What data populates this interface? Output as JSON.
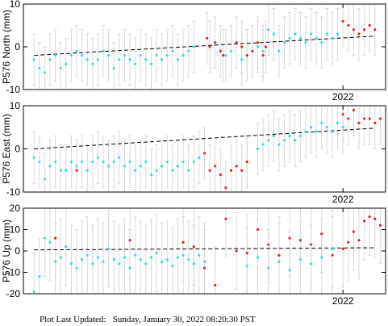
{
  "footer": {
    "label": "Plot Last Updated:",
    "timestamp": "Sunday, January 30, 2022 08:20:30 PST"
  },
  "colors": {
    "cyan_points": "#33ddee",
    "red_points": "#ee2222",
    "error_bars": "#d8d8d8",
    "trend": "#000000"
  },
  "chart_data": [
    {
      "type": "scatter",
      "ylabel": "P576 North (mm)",
      "ylim": [
        -10,
        10
      ],
      "yticks": [
        -10,
        0,
        10
      ],
      "xlim": [
        2021.4,
        2022.08
      ],
      "xticks": [
        2022
      ],
      "xticklabels": [
        "2022"
      ],
      "error_bar_mm": 6,
      "trend": {
        "x": [
          2021.42,
          2022.06
        ],
        "y": [
          -2.0,
          2.5
        ]
      },
      "series": [
        {
          "color": "cyan",
          "x": [
            2021.42,
            2021.43,
            2021.44,
            2021.45,
            2021.46,
            2021.47,
            2021.48,
            2021.49,
            2021.5,
            2021.51,
            2021.52,
            2021.53,
            2021.54,
            2021.55,
            2021.56,
            2021.57,
            2021.58,
            2021.59,
            2021.6,
            2021.61,
            2021.62,
            2021.63,
            2021.64,
            2021.65,
            2021.66,
            2021.67,
            2021.68,
            2021.69,
            2021.7,
            2021.71,
            2021.72,
            2021.78,
            2021.79,
            2021.81,
            2021.82,
            2021.83,
            2021.84,
            2021.85,
            2021.86,
            2021.87,
            2021.88,
            2021.89,
            2021.9,
            2021.91,
            2021.92,
            2021.93,
            2021.94,
            2021.95,
            2021.96,
            2021.97,
            2021.98,
            2021.99
          ],
          "y": [
            -3,
            -5,
            -6,
            -3,
            -2,
            -5,
            -4,
            -2,
            -1,
            -2,
            -3,
            -4,
            -3,
            -1,
            -2,
            -5,
            -3,
            -2,
            -3,
            -4,
            -2,
            -3,
            -4,
            -2,
            -3,
            -2,
            -1,
            -3,
            -2,
            -1,
            0,
            -2,
            -1,
            -3,
            -2,
            -1,
            0,
            -1,
            4,
            3,
            -1,
            1,
            2,
            3,
            2,
            1,
            3,
            2,
            1,
            3,
            2,
            3
          ]
        },
        {
          "color": "red",
          "x": [
            2021.745,
            2021.75,
            2021.76,
            2021.77,
            2021.775,
            2021.8,
            2021.81,
            2021.82,
            2021.83,
            2021.84,
            2021.85,
            2021.855,
            2022.0,
            2022.01,
            2022.02,
            2022.03,
            2022.04,
            2022.05,
            2022.06
          ],
          "y": [
            2,
            0,
            1,
            -1,
            -2,
            1,
            0,
            -2,
            -1,
            1,
            -2,
            0,
            6,
            5,
            4,
            3,
            4,
            5,
            4
          ]
        }
      ]
    },
    {
      "type": "scatter",
      "ylabel": "P576 East (mm)",
      "ylim": [
        -10,
        10
      ],
      "yticks": [
        -10,
        0,
        10
      ],
      "xlim": [
        2021.4,
        2022.08
      ],
      "xticks": [
        2022
      ],
      "xticklabels": [
        "2022"
      ],
      "error_bar_mm": 6,
      "trend": {
        "x": [
          2021.42,
          2022.06
        ],
        "y": [
          0.0,
          4.8
        ]
      },
      "series": [
        {
          "color": "cyan",
          "x": [
            2021.42,
            2021.43,
            2021.44,
            2021.45,
            2021.46,
            2021.47,
            2021.48,
            2021.49,
            2021.5,
            2021.51,
            2021.52,
            2021.53,
            2021.54,
            2021.55,
            2021.56,
            2021.57,
            2021.58,
            2021.59,
            2021.6,
            2021.61,
            2021.62,
            2021.63,
            2021.64,
            2021.65,
            2021.66,
            2021.67,
            2021.68,
            2021.69,
            2021.7,
            2021.71,
            2021.72,
            2021.73,
            2021.82,
            2021.84,
            2021.85,
            2021.86,
            2021.87,
            2021.88,
            2021.89,
            2021.9,
            2021.91,
            2021.92,
            2021.93,
            2021.94,
            2021.95,
            2021.96,
            2021.97,
            2021.98,
            2021.99,
            2022.0
          ],
          "y": [
            -2,
            -3,
            -7,
            -4,
            -3,
            -5,
            -5,
            -3,
            -4,
            -3,
            -5,
            -3,
            -2,
            -3,
            -4,
            -3,
            -2,
            -4,
            -3,
            -5,
            -4,
            -3,
            -6,
            -5,
            -4,
            -3,
            -5,
            -4,
            -3,
            -5,
            -3,
            -2,
            -3,
            0,
            1,
            2,
            3,
            1,
            2,
            3,
            2,
            3,
            4,
            5,
            4,
            6,
            5,
            4,
            6,
            5
          ]
        },
        {
          "color": "red",
          "x": [
            2021.5,
            2021.74,
            2021.75,
            2021.76,
            2021.77,
            2021.78,
            2021.79,
            2021.8,
            2021.81,
            2021.82,
            2022.0,
            2022.01,
            2022.02,
            2022.03,
            2022.04,
            2022.05,
            2022.06,
            2022.07
          ],
          "y": [
            -5,
            -1,
            -5,
            -4,
            -6,
            -9,
            -5,
            -4,
            -5,
            -3,
            8,
            7,
            9,
            6,
            7,
            7,
            6,
            7
          ]
        }
      ]
    },
    {
      "type": "scatter",
      "ylabel": "P576 Up (mm)",
      "ylim": [
        -20,
        20
      ],
      "yticks": [
        -20,
        -10,
        0,
        10,
        20
      ],
      "xlim": [
        2021.4,
        2022.08
      ],
      "xticks": [
        2022
      ],
      "xticklabels": [
        "2022"
      ],
      "error_bar_mm": 18,
      "trend": {
        "x": [
          2021.42,
          2022.06
        ],
        "y": [
          0.5,
          1.5
        ]
      },
      "series": [
        {
          "color": "cyan",
          "x": [
            2021.42,
            2021.43,
            2021.44,
            2021.45,
            2021.46,
            2021.47,
            2021.48,
            2021.49,
            2021.5,
            2021.51,
            2021.52,
            2021.53,
            2021.54,
            2021.55,
            2021.56,
            2021.57,
            2021.58,
            2021.59,
            2021.6,
            2021.61,
            2021.62,
            2021.63,
            2021.64,
            2021.65,
            2021.66,
            2021.67,
            2021.68,
            2021.69,
            2021.7,
            2021.71,
            2021.72,
            2021.73,
            2021.74,
            2021.82,
            2021.84,
            2021.86,
            2021.88,
            2021.9,
            2021.92,
            2021.94,
            2021.96,
            2021.98
          ],
          "y": [
            -19,
            -12,
            6,
            4,
            -5,
            -3,
            2,
            -6,
            -8,
            -4,
            -2,
            -6,
            -3,
            -5,
            1,
            -4,
            -6,
            -3,
            -8,
            -2,
            -4,
            -6,
            -3,
            -1,
            -5,
            -4,
            -7,
            -3,
            -2,
            -4,
            -6,
            -2,
            -5,
            -7,
            -3,
            -8,
            -5,
            -9,
            -4,
            -6,
            -3,
            1
          ]
        },
        {
          "color": "red",
          "x": [
            2021.46,
            2021.6,
            2021.7,
            2021.72,
            2021.74,
            2021.76,
            2021.78,
            2021.8,
            2021.82,
            2021.84,
            2021.86,
            2021.88,
            2021.9,
            2021.92,
            2021.94,
            2021.96,
            2021.98,
            2022.0,
            2022.01,
            2022.02,
            2022.03,
            2022.04,
            2022.05,
            2022.06,
            2022.07
          ],
          "y": [
            6,
            5,
            4,
            2,
            -8,
            -16,
            15,
            0,
            -1,
            10,
            3,
            -2,
            6,
            5,
            3,
            8,
            -2,
            1,
            4,
            9,
            5,
            14,
            16,
            15,
            12
          ]
        }
      ]
    }
  ]
}
